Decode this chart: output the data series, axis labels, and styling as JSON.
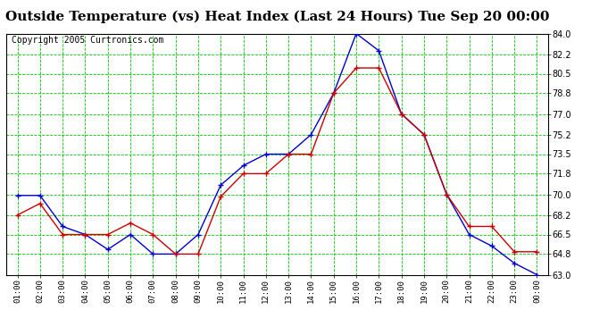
{
  "title": "Outside Temperature (vs) Heat Index (Last 24 Hours) Tue Sep 20 00:00",
  "copyright": "Copyright 2005 Curtronics.com",
  "x_labels": [
    "01:00",
    "02:00",
    "03:00",
    "04:00",
    "05:00",
    "06:00",
    "07:00",
    "08:00",
    "09:00",
    "10:00",
    "11:00",
    "12:00",
    "13:00",
    "14:00",
    "15:00",
    "16:00",
    "17:00",
    "18:00",
    "19:00",
    "20:00",
    "21:00",
    "22:00",
    "23:00",
    "00:00"
  ],
  "blue_data": [
    69.9,
    69.9,
    67.2,
    66.5,
    65.2,
    66.5,
    64.8,
    64.8,
    66.5,
    70.8,
    72.5,
    73.5,
    73.5,
    75.2,
    78.8,
    84.0,
    82.5,
    77.0,
    75.2,
    70.0,
    66.5,
    65.5,
    64.0,
    63.0
  ],
  "red_data": [
    68.2,
    69.2,
    66.5,
    66.5,
    66.5,
    67.5,
    66.5,
    64.8,
    64.8,
    69.8,
    71.8,
    71.8,
    73.5,
    73.5,
    78.8,
    81.0,
    81.0,
    77.0,
    75.2,
    70.0,
    67.2,
    67.2,
    65.0,
    65.0
  ],
  "ylim": [
    63.0,
    84.0
  ],
  "yticks": [
    63.0,
    64.8,
    66.5,
    68.2,
    70.0,
    71.8,
    73.5,
    75.2,
    77.0,
    78.8,
    80.5,
    82.2,
    84.0
  ],
  "bg_color": "#ffffff",
  "plot_bg_color": "#ffffff",
  "grid_color": "#00cc00",
  "blue_color": "#0000cc",
  "red_color": "#cc0000",
  "title_fontsize": 11,
  "copyright_fontsize": 7
}
